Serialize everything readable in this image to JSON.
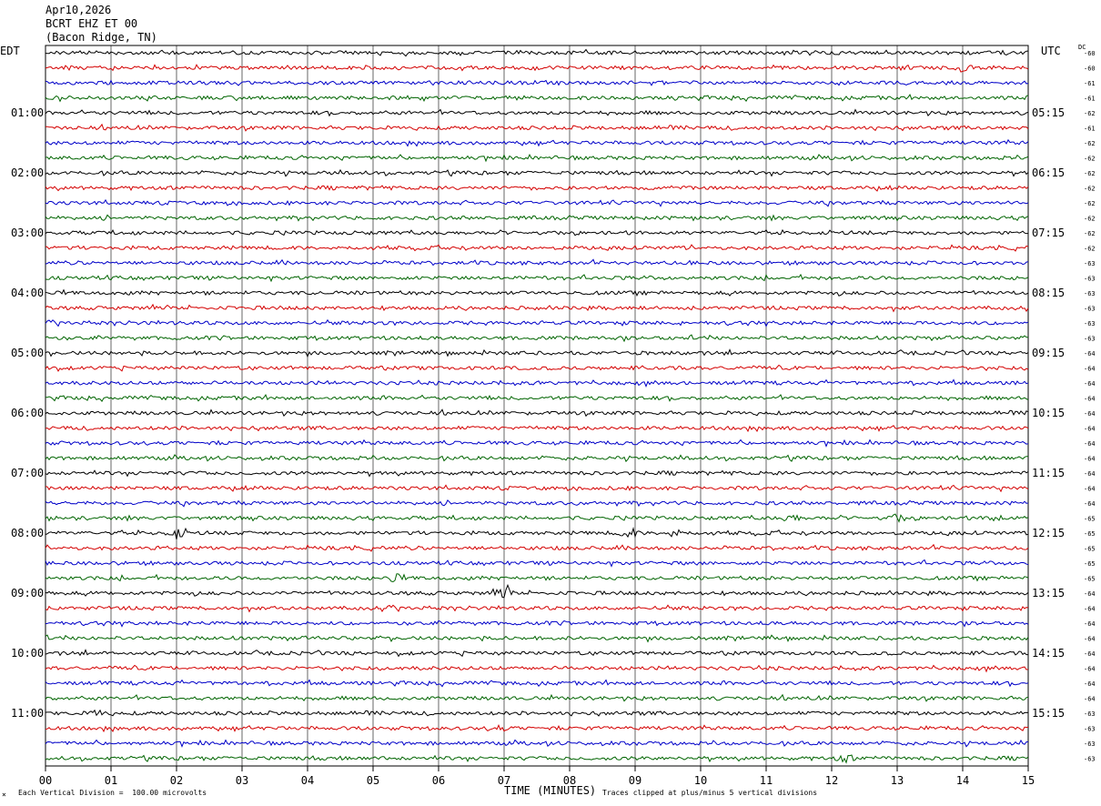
{
  "header": {
    "date": "Apr10,2026",
    "station": "BCRT EHZ ET 00",
    "location": "(Bacon Ridge, TN)"
  },
  "labels": {
    "left_tz": "EDT",
    "right_tz": "UTC",
    "dc": "DC",
    "x_title": "TIME (MINUTES)",
    "scale_note": "Each Vertical Division =  100.00 microvolts",
    "clip_note": "Traces clipped at plus/minus 5 vertical divisions",
    "corner_mark": "×"
  },
  "colors": {
    "trace_cycle": [
      "#000000",
      "#d40000",
      "#0000c8",
      "#006400"
    ],
    "grid": "#000000",
    "background": "#ffffff"
  },
  "chart_data": {
    "type": "line",
    "title": "BCRT EHZ ET 00",
    "xlabel": "TIME (MINUTES)",
    "x_ticks": [
      "00",
      "01",
      "02",
      "03",
      "04",
      "05",
      "06",
      "07",
      "08",
      "09",
      "10",
      "11",
      "12",
      "13",
      "14",
      "15"
    ],
    "xlim": [
      0,
      15
    ],
    "traces_per_hour": 4,
    "trace_count": 48,
    "left_time_labels": [
      "01:00",
      "02:00",
      "03:00",
      "04:00",
      "05:00",
      "06:00",
      "07:00",
      "08:00",
      "09:00",
      "10:00",
      "11:00"
    ],
    "right_time_labels": [
      "05:15",
      "06:15",
      "07:15",
      "08:15",
      "09:15",
      "10:15",
      "11:15",
      "12:15",
      "13:15",
      "14:15",
      "15:15"
    ],
    "dc_offsets": [
      -60,
      -60,
      -61,
      -61,
      -62,
      -61,
      -62,
      -62,
      -62,
      -62,
      -62,
      -62,
      -62,
      -62,
      -63,
      -63,
      -63,
      -63,
      -63,
      -63,
      -64,
      -64,
      -64,
      -64,
      -64,
      -64,
      -64,
      -64,
      -64,
      -64,
      -64,
      -65,
      -65,
      -65,
      -65,
      -65,
      -64,
      -64,
      -64,
      -64,
      -64,
      -64,
      -64,
      -64,
      -63,
      -63,
      -63,
      -63
    ],
    "events": [
      {
        "trace": 32,
        "minute": 2.0,
        "amp": 3.0
      },
      {
        "trace": 32,
        "minute": 8.9,
        "amp": 3.0
      },
      {
        "trace": 32,
        "minute": 9.6,
        "amp": 2.2
      },
      {
        "trace": 35,
        "minute": 5.3,
        "amp": 2.5
      },
      {
        "trace": 36,
        "minute": 7.0,
        "amp": 2.8
      },
      {
        "trace": 31,
        "minute": 11.4,
        "amp": 2.0
      },
      {
        "trace": 31,
        "minute": 13.0,
        "amp": 1.8
      },
      {
        "trace": 31,
        "minute": 14.5,
        "amp": 2.5
      },
      {
        "trace": 1,
        "minute": 14.0,
        "amp": 1.8
      },
      {
        "trace": 47,
        "minute": 12.2,
        "amp": 1.8
      },
      {
        "trace": 44,
        "minute": 0.8,
        "amp": 1.6
      },
      {
        "trace": 45,
        "minute": 6.9,
        "amp": 1.5
      }
    ]
  }
}
